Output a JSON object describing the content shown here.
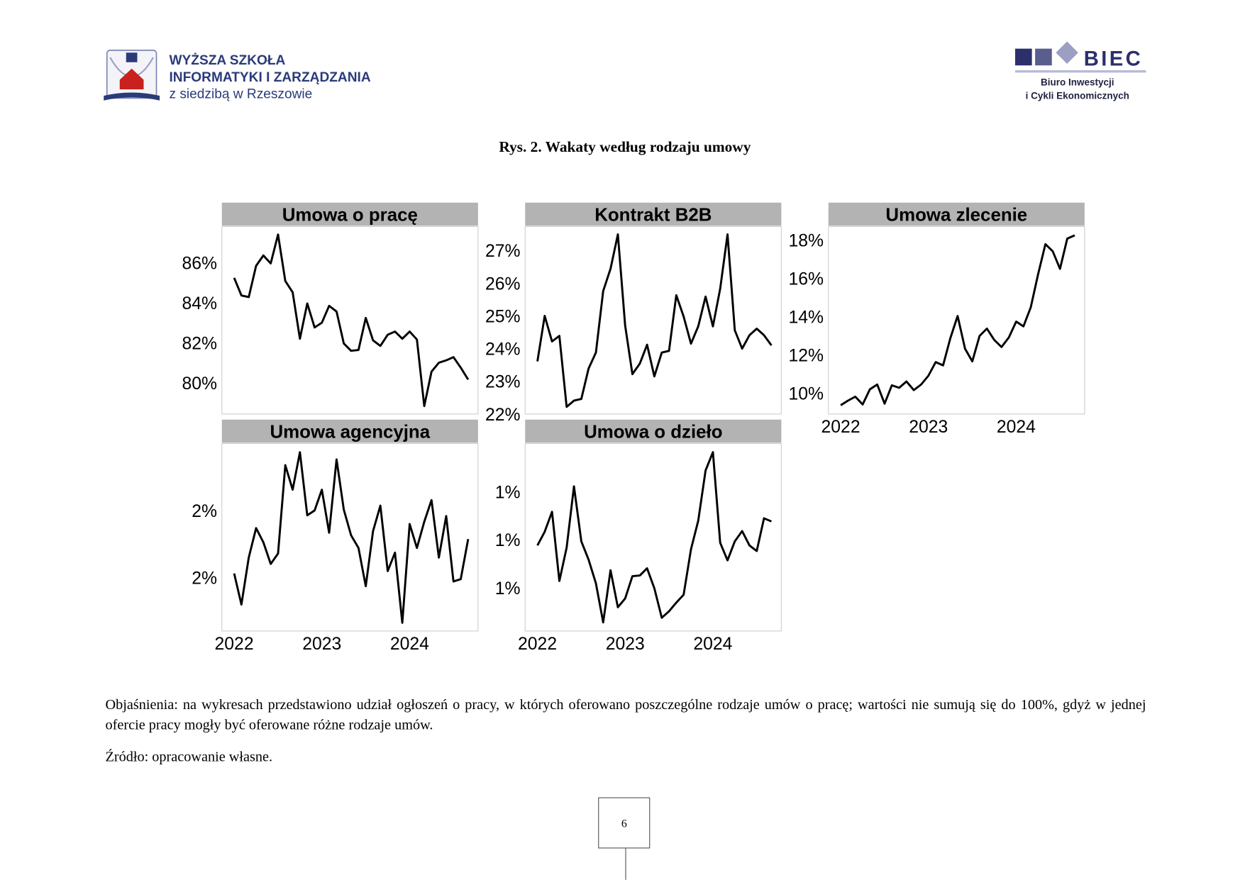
{
  "header": {
    "left_logo": {
      "line1": "WYŻSZA SZKOŁA",
      "line2": "INFORMATYKI I ZARZĄDZANIA",
      "line3": "z siedzibą w Rzeszowie"
    },
    "right_logo": {
      "name": "BIEC",
      "line1": "Biuro Inwestycji",
      "line2": "i Cykli Ekonomicznych"
    }
  },
  "figure_title": "Rys. 2. Wakaty według rodzaju umowy",
  "chart_data": [
    {
      "type": "line",
      "title": "Umowa o pracę",
      "color": "#000000",
      "x": [
        2022,
        2022.083,
        2022.167,
        2022.25,
        2022.333,
        2022.417,
        2022.5,
        2022.583,
        2022.667,
        2022.75,
        2022.833,
        2022.917,
        2023,
        2023.083,
        2023.167,
        2023.25,
        2023.333,
        2023.417,
        2023.5,
        2023.583,
        2023.667,
        2023.75,
        2023.833,
        2023.917,
        2024,
        2024.083,
        2024.167,
        2024.25,
        2024.333,
        2024.417,
        2024.5,
        2024.583,
        2024.667
      ],
      "values": [
        85.24,
        84.36,
        84.28,
        85.84,
        86.36,
        85.96,
        87.4,
        85.08,
        84.52,
        82.2,
        83.96,
        82.76,
        83.0,
        83.84,
        83.56,
        81.96,
        81.6,
        81.64,
        83.24,
        82.12,
        81.84,
        82.4,
        82.56,
        82.2,
        82.56,
        82.16,
        78.84,
        80.56,
        81.0,
        81.12,
        81.28,
        80.76,
        80.16
      ],
      "xlim": [
        2021.86,
        2024.78
      ],
      "ylim": [
        78.44,
        87.8
      ],
      "yticks": [
        {
          "value": 80,
          "label": "80%"
        },
        {
          "value": 82,
          "label": "82%"
        },
        {
          "value": 84,
          "label": "84%"
        },
        {
          "value": 86,
          "label": "86%"
        }
      ]
    },
    {
      "type": "line",
      "title": "Kontrakt B2B",
      "color": "#000000",
      "x": [
        2022,
        2022.083,
        2022.167,
        2022.25,
        2022.333,
        2022.417,
        2022.5,
        2022.583,
        2022.667,
        2022.75,
        2022.833,
        2022.917,
        2023,
        2023.083,
        2023.167,
        2023.25,
        2023.333,
        2023.417,
        2023.5,
        2023.583,
        2023.667,
        2023.75,
        2023.833,
        2023.917,
        2024,
        2024.083,
        2024.167,
        2024.25,
        2024.333,
        2024.417,
        2024.5,
        2024.583,
        2024.667
      ],
      "values": [
        23.61,
        25.0,
        24.22,
        24.39,
        22.22,
        22.41,
        22.46,
        23.39,
        23.88,
        25.76,
        26.44,
        27.49,
        24.71,
        23.22,
        23.54,
        24.12,
        23.15,
        23.88,
        23.93,
        25.63,
        24.98,
        24.15,
        24.68,
        25.59,
        24.68,
        25.83,
        27.49,
        24.56,
        24.0,
        24.41,
        24.61,
        24.41,
        24.1
      ],
      "xlim": [
        2021.86,
        2024.78
      ],
      "ylim": [
        22,
        27.73
      ],
      "yticks": [
        {
          "value": 22,
          "label": "22%"
        },
        {
          "value": 23,
          "label": "23%"
        },
        {
          "value": 24,
          "label": "24%"
        },
        {
          "value": 25,
          "label": "25%"
        },
        {
          "value": 26,
          "label": "26%"
        },
        {
          "value": 27,
          "label": "27%"
        }
      ]
    },
    {
      "type": "line",
      "title": "Umowa zlecenie",
      "color": "#000000",
      "x": [
        2022,
        2022.083,
        2022.167,
        2022.25,
        2022.333,
        2022.417,
        2022.5,
        2022.583,
        2022.667,
        2022.75,
        2022.833,
        2022.917,
        2023,
        2023.083,
        2023.167,
        2023.25,
        2023.333,
        2023.417,
        2023.5,
        2023.583,
        2023.667,
        2023.75,
        2023.833,
        2023.917,
        2024,
        2024.083,
        2024.167,
        2024.25,
        2024.333,
        2024.417,
        2024.5,
        2024.583,
        2024.667
      ],
      "values": [
        9.38,
        9.62,
        9.83,
        9.42,
        10.21,
        10.46,
        9.46,
        10.42,
        10.29,
        10.62,
        10.17,
        10.46,
        10.92,
        11.63,
        11.46,
        12.88,
        14.04,
        12.33,
        11.67,
        13.0,
        13.38,
        12.79,
        12.42,
        12.92,
        13.75,
        13.5,
        14.5,
        16.21,
        17.79,
        17.42,
        16.5,
        18.08,
        18.25
      ],
      "xlim": [
        2021.86,
        2024.78
      ],
      "ylim": [
        8.92,
        18.71
      ],
      "xticks": [
        2022,
        2023,
        2024
      ],
      "yticks": [
        {
          "value": 10,
          "label": "10%"
        },
        {
          "value": 12,
          "label": "12%"
        },
        {
          "value": 14,
          "label": "14%"
        },
        {
          "value": 16,
          "label": "16%"
        },
        {
          "value": 18,
          "label": "18%"
        }
      ]
    },
    {
      "type": "line",
      "title": "Umowa agencyjna",
      "color": "#000000",
      "x": [
        2022,
        2022.083,
        2022.167,
        2022.25,
        2022.333,
        2022.417,
        2022.5,
        2022.583,
        2022.667,
        2022.75,
        2022.833,
        2022.917,
        2023,
        2023.083,
        2023.167,
        2023.25,
        2023.333,
        2023.417,
        2023.5,
        2023.583,
        2023.667,
        2023.75,
        2023.833,
        2023.917,
        2024,
        2024.083,
        2024.167,
        2024.25,
        2024.333,
        2024.417,
        2024.5,
        2024.583,
        2024.667
      ],
      "values": [
        1.824,
        1.638,
        1.919,
        2.095,
        2.01,
        1.881,
        1.943,
        2.471,
        2.324,
        2.548,
        2.171,
        2.2,
        2.324,
        2.067,
        2.505,
        2.205,
        2.052,
        1.976,
        1.748,
        2.076,
        2.229,
        1.838,
        1.948,
        1.529,
        2.119,
        1.976,
        2.133,
        2.262,
        1.919,
        2.167,
        1.776,
        1.79,
        2.029
      ],
      "xlim": [
        2021.86,
        2024.78
      ],
      "ylim": [
        1.48,
        2.6
      ],
      "xticks": [
        2022,
        2023,
        2024
      ],
      "yticks": [
        {
          "value": 1.8,
          "label": "2%"
        },
        {
          "value": 2.2,
          "label": "2%"
        }
      ]
    },
    {
      "type": "line",
      "title": "Umowa o dzieło",
      "color": "#000000",
      "x": [
        2022,
        2022.083,
        2022.167,
        2022.25,
        2022.333,
        2022.417,
        2022.5,
        2022.583,
        2022.667,
        2022.75,
        2022.833,
        2022.917,
        2023,
        2023.083,
        2023.167,
        2023.25,
        2023.333,
        2023.417,
        2023.5,
        2023.583,
        2023.667,
        2023.75,
        2023.833,
        2023.917,
        2024,
        2024.083,
        2024.167,
        2024.25,
        2024.333,
        2024.417,
        2024.5,
        2024.583,
        2024.667
      ],
      "values": [
        0.976,
        1.033,
        1.116,
        0.828,
        0.967,
        1.222,
        0.993,
        0.917,
        0.818,
        0.656,
        0.873,
        0.719,
        0.755,
        0.848,
        0.851,
        0.881,
        0.798,
        0.675,
        0.702,
        0.738,
        0.771,
        0.96,
        1.079,
        1.288,
        1.364,
        0.987,
        0.914,
        0.993,
        1.036,
        0.976,
        0.953,
        1.089,
        1.076
      ],
      "xlim": [
        2021.86,
        2024.78
      ],
      "ylim": [
        0.62,
        1.4
      ],
      "xticks": [
        2022,
        2023,
        2024
      ],
      "yticks": [
        {
          "value": 0.8,
          "label": "1%"
        },
        {
          "value": 1.0,
          "label": "1%"
        },
        {
          "value": 1.2,
          "label": "1%"
        }
      ]
    }
  ],
  "notes": [
    "Objaśnienia: na wykresach przedstawiono udział ogłoszeń o pracy, w których oferowano poszczególne rodzaje umów o pracę; wartości nie sumują się do 100%, gdyż w jednej ofercie pracy mogły być oferowane różne rodzaje umów.",
    "Źródło: opracowanie własne."
  ],
  "page_number": "6"
}
